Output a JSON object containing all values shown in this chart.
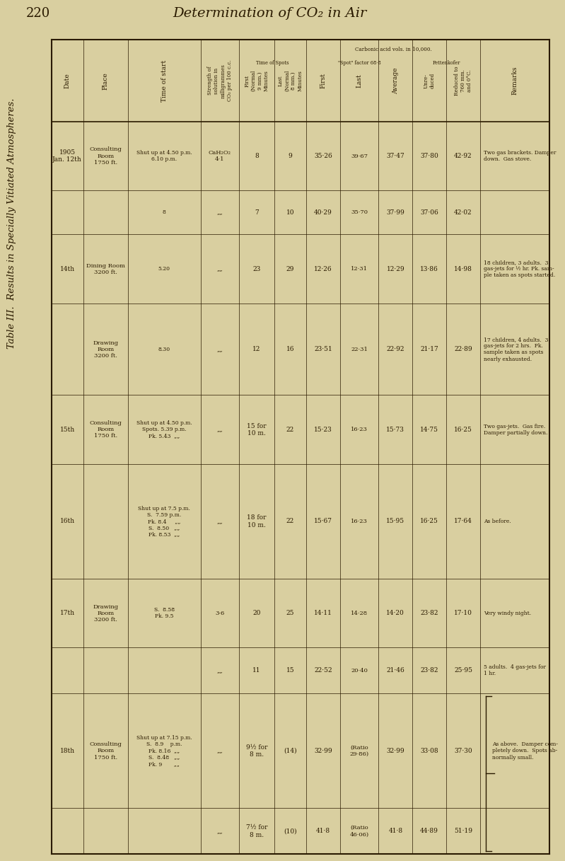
{
  "page_num": "220",
  "page_title": "Determination of CO₂ in Air",
  "table_title": "Table III.  Results in Specially Vitiated Atmospheres.",
  "bg_color": "#d9cfa0",
  "text_color": "#2a1a00",
  "rows": [
    {
      "date": "1905\nJan. 12th",
      "place": "Consulting\nRoom\n1750 ft.",
      "time_of_start": "Shut up at 4.50 p.m.\n6.10 p.m.",
      "strength": "CaH₂O₂\n4·1",
      "time_first": "8",
      "time_last": "9",
      "spot_first": "35·26",
      "spot_last": "39·67",
      "spot_avg": "37·47",
      "petten_unred": "37·80",
      "petten_red": "42·92",
      "remarks": "Two gas brackets. Damper\ndown.  Gas stove."
    },
    {
      "date": "",
      "place": "",
      "time_of_start": "8",
      "strength": "„„",
      "time_first": "7",
      "time_last": "10",
      "spot_first": "40·29",
      "spot_last": "35·70",
      "spot_avg": "37·99",
      "petten_unred": "37·06",
      "petten_red": "42·02",
      "remarks": ""
    },
    {
      "date": "14th",
      "place": "Dining Room\n3200 ft.",
      "time_of_start": "5.20",
      "strength": "„„",
      "time_first": "23",
      "time_last": "29",
      "spot_first": "12·26",
      "spot_last": "12·31",
      "spot_avg": "12·29",
      "petten_unred": "13·86",
      "petten_red": "14·98",
      "remarks": "18 children, 3 adults.  3\ngas-jets for ½ hr. Pk. sam-\nple taken as spots started."
    },
    {
      "date": "",
      "place": "Drawing\nRoom\n3200 ft.",
      "time_of_start": "8.30",
      "strength": "„„",
      "time_first": "12",
      "time_last": "16",
      "spot_first": "23·51",
      "spot_last": "22·31",
      "spot_avg": "22·92",
      "petten_unred": "21·17",
      "petten_red": "22·89",
      "remarks": "17 children, 4 adults.  3\ngas-jets for 2 hrs.  Pk.\nsample taken as spots\nnearly exhausted."
    },
    {
      "date": "15th",
      "place": "Consulting\nRoom\n1750 ft.",
      "time_of_start": "Shut up at 4.50 p.m.\nSpots. 5.39 p.m.\nPk. 5.43  „„",
      "strength": "„„",
      "time_first": "15 for\n10 m.",
      "time_last": "22",
      "spot_first": "15·23",
      "spot_last": "16·23",
      "spot_avg": "15·73",
      "petten_unred": "14·75",
      "petten_red": "16·25",
      "remarks": "Two gas-jets.  Gas fire.\nDamper partially down."
    },
    {
      "date": "16th",
      "place": "",
      "time_of_start": "Shut up at 7.5 p.m.\nS.  7.59 p.m.\nPk. 8.4     „„\nS.  8.50   „„\nPk. 8.53  „„",
      "strength": "„„",
      "time_first": "18 for\n10 m.",
      "time_last": "22",
      "spot_first": "15·67",
      "spot_last": "16·23",
      "spot_avg": "15·95",
      "petten_unred": "16·25",
      "petten_red": "17·64",
      "remarks": "As before."
    },
    {
      "date": "17th",
      "place": "Drawing\nRoom\n3200 ft.",
      "time_of_start": "S.  8.58\nPk. 9.5",
      "strength": "3·6",
      "time_first": "20",
      "time_last": "25",
      "spot_first": "14·11",
      "spot_last": "14·28",
      "spot_avg": "14·20",
      "petten_unred": "23·82",
      "petten_red": "17·10",
      "remarks": "Very windy night."
    },
    {
      "date": "",
      "place": "",
      "time_of_start": "",
      "strength": "„„",
      "time_first": "11",
      "time_last": "15",
      "spot_first": "22·52",
      "spot_last": "20·40",
      "spot_avg": "21·46",
      "petten_unred": "23·82",
      "petten_red": "25·95",
      "remarks": "5 adults.  4 gas-jets for\n1 hr."
    },
    {
      "date": "18th",
      "place": "Consulting\nRoom\n1750 ft.",
      "time_of_start": "Shut up at 7.15 p.m.\nS.  8.9    p.m.\nPk. 8.16  „„\nS.  8.48   „„\nPk. 9       „„",
      "strength": "„„",
      "time_first": "9½ for\n8 m.",
      "time_last": "(14)",
      "spot_first": "32·99",
      "spot_last": "(Ratio\n29·86)",
      "spot_avg": "32·99",
      "petten_unred": "33·08",
      "petten_red": "37·30",
      "remarks": "As above.  Damper com-\npletely down.  Spots ab-\nnormally small."
    },
    {
      "date": "",
      "place": "",
      "time_of_start": "",
      "strength": "„„",
      "time_first": "7½ for\n8 m.",
      "time_last": "(10)",
      "spot_first": "41·8",
      "spot_last": "(Ratio\n46·06)",
      "spot_avg": "41·8",
      "petten_unred": "44·89",
      "petten_red": "51·19",
      "remarks": ""
    }
  ]
}
